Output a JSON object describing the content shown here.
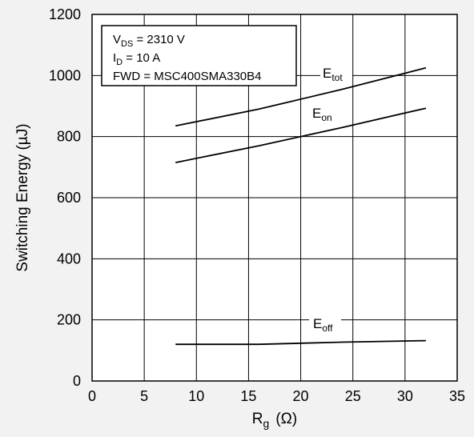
{
  "chart_data": {
    "type": "line",
    "title": "",
    "xlabel": {
      "main": "R",
      "sub": "g",
      "unit": "(Ω)"
    },
    "ylabel": "Switching Energy (µJ)",
    "xlim": [
      0,
      35
    ],
    "ylim": [
      0,
      1200
    ],
    "xticks": [
      0,
      5,
      10,
      15,
      20,
      25,
      30,
      35
    ],
    "yticks": [
      0,
      200,
      400,
      600,
      800,
      1000,
      1200
    ],
    "grid": true,
    "background": "#f2f2f2",
    "plot_background": "#ffffff",
    "line_color": "#000000",
    "annotation_box": {
      "lines": [
        {
          "main": "V",
          "sub": "DS",
          "rest": " = 2310 V"
        },
        {
          "main": "I",
          "sub": "D",
          "rest": " = 10 A"
        },
        {
          "main": "FWD = MSC400SMA330B4",
          "sub": "",
          "rest": ""
        }
      ]
    },
    "series": [
      {
        "name": "E",
        "sub": "tot",
        "x": [
          8,
          16,
          24,
          32
        ],
        "values": [
          835,
          890,
          955,
          1025
        ]
      },
      {
        "name": "E",
        "sub": "on",
        "x": [
          8,
          16,
          24,
          32
        ],
        "values": [
          715,
          770,
          830,
          893
        ]
      },
      {
        "name": "E",
        "sub": "off",
        "x": [
          8,
          16,
          24,
          32
        ],
        "values": [
          120,
          120,
          127,
          132
        ]
      }
    ]
  }
}
